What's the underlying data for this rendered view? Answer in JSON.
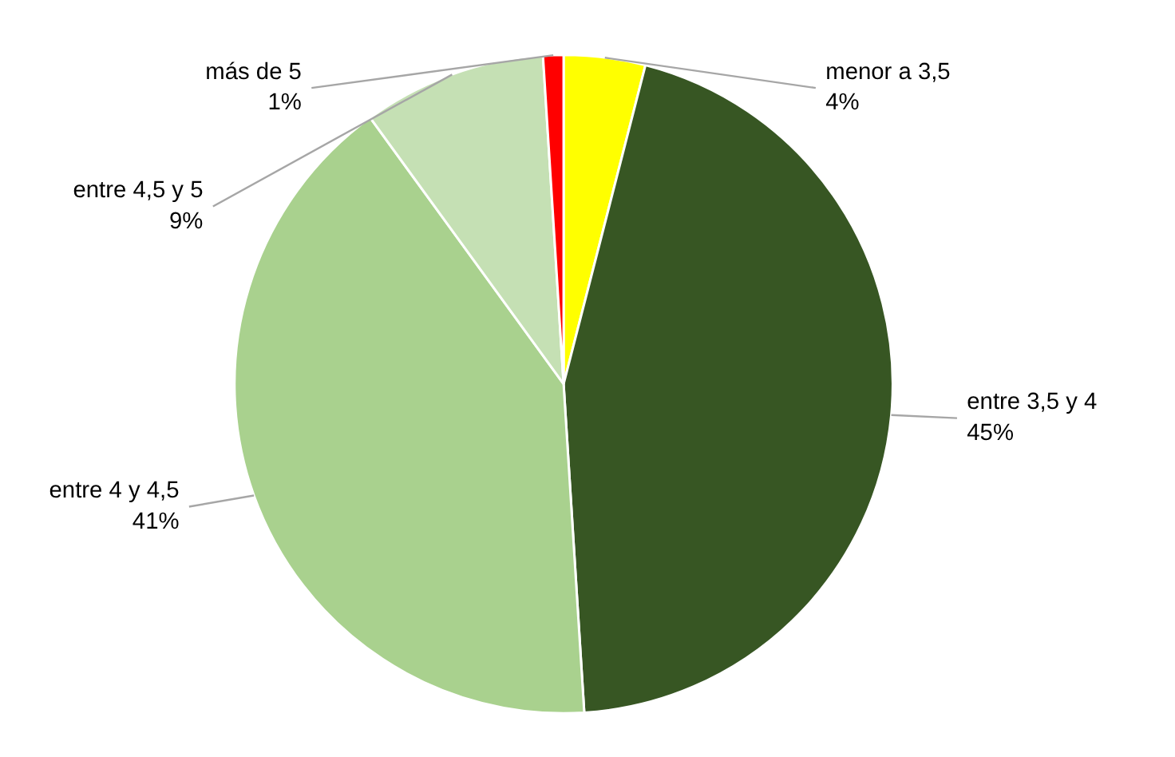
{
  "chart_data": {
    "type": "pie",
    "categories": [
      "menor a 3,5",
      "entre 3,5 y 4",
      "entre 4 y 4,5",
      "entre 4,5 y 5",
      "más de 5"
    ],
    "values": [
      4,
      45,
      41,
      9,
      1
    ],
    "value_labels": [
      "4%",
      "45%",
      "41%",
      "9%",
      "1%"
    ],
    "colors": [
      "#ffff00",
      "#375623",
      "#a9d18e",
      "#c5e0b4",
      "#ff0000"
    ]
  }
}
